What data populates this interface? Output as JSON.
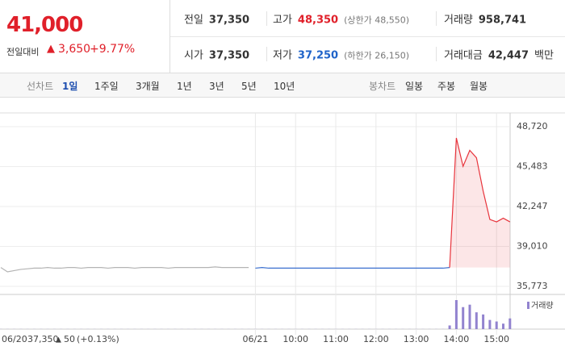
{
  "quote": {
    "price": "41,000",
    "change_label": "전일대비",
    "change": "3,650",
    "rate": "+9.77%",
    "stats": [
      {
        "label": "전일",
        "value": "37,350"
      },
      {
        "label": "고가",
        "value": "48,350",
        "note": "(상한가 48,550)",
        "color": "#e0202a"
      },
      {
        "label": "거래량",
        "value": "958,741"
      },
      {
        "label": "시가",
        "value": "37,350"
      },
      {
        "label": "저가",
        "value": "37,250",
        "note": "(하한가 26,150)",
        "color": "#1f63c9"
      },
      {
        "label": "거래대금",
        "value": "42,447",
        "unit": "백만"
      }
    ]
  },
  "tabs": {
    "line_label": "선차트",
    "line_periods": [
      "1일",
      "1주일",
      "3개월",
      "1년",
      "3년",
      "5년",
      "10년"
    ],
    "candle_label": "봉차트",
    "candle_periods": [
      "일봉",
      "주봉",
      "월봉"
    ]
  },
  "chart_data": {
    "type": "line",
    "categories": [
      "06/20",
      null,
      null,
      null,
      null,
      null,
      null,
      null,
      null,
      null,
      null,
      null,
      null,
      null,
      null,
      null,
      null,
      null,
      null,
      null,
      null,
      null,
      null,
      null,
      null,
      null,
      null,
      null,
      null,
      null,
      null,
      null,
      null,
      null,
      null,
      null,
      null,
      null,
      "06/21",
      null,
      null,
      null,
      null,
      null,
      "10:00",
      null,
      null,
      null,
      null,
      null,
      "11:00",
      null,
      null,
      null,
      null,
      null,
      "12:00",
      null,
      null,
      null,
      null,
      null,
      "13:00",
      null,
      null,
      null,
      null,
      null,
      "14:00",
      null,
      null,
      null,
      null,
      null,
      "15:00",
      null,
      null
    ],
    "series": [
      {
        "color": "#b4b4b4",
        "values": [
          37300,
          36950,
          37050,
          37150,
          37200,
          37250,
          37250,
          37300,
          37250,
          37250,
          37300,
          37300,
          37250,
          37300,
          37300,
          37300,
          37250,
          37300,
          37300,
          37300,
          37250,
          37300,
          37300,
          37300,
          37300,
          37250,
          37300,
          37300,
          37300,
          37300,
          37300,
          37300,
          37350,
          37300,
          37300,
          37300,
          37300,
          37300,
          null,
          null,
          null,
          null,
          null,
          null,
          null,
          null,
          null,
          null,
          null,
          null,
          null,
          null,
          null,
          null,
          null,
          null,
          null,
          null,
          null,
          null,
          null,
          null,
          null,
          null,
          null,
          null,
          null,
          null,
          null,
          null,
          null,
          null,
          null,
          null,
          null,
          null,
          null
        ]
      },
      {
        "color": "#3a6fcf",
        "values": [
          null,
          null,
          null,
          null,
          null,
          null,
          null,
          null,
          null,
          null,
          null,
          null,
          null,
          null,
          null,
          null,
          null,
          null,
          null,
          null,
          null,
          null,
          null,
          null,
          null,
          null,
          null,
          null,
          null,
          null,
          null,
          null,
          null,
          null,
          null,
          null,
          null,
          null,
          37250,
          37300,
          37250,
          37250,
          37250,
          37250,
          37250,
          37250,
          37250,
          37250,
          37250,
          37250,
          37250,
          37250,
          37250,
          37250,
          37250,
          37250,
          37250,
          37250,
          37250,
          37250,
          37250,
          37250,
          37250,
          37250,
          37250,
          37250,
          37250,
          37300,
          null,
          null,
          null,
          null,
          null,
          null,
          null,
          null,
          null
        ]
      },
      {
        "color": "#e8343c",
        "area": true,
        "values": [
          null,
          null,
          null,
          null,
          null,
          null,
          null,
          null,
          null,
          null,
          null,
          null,
          null,
          null,
          null,
          null,
          null,
          null,
          null,
          null,
          null,
          null,
          null,
          null,
          null,
          null,
          null,
          null,
          null,
          null,
          null,
          null,
          null,
          null,
          null,
          null,
          null,
          null,
          null,
          null,
          null,
          null,
          null,
          null,
          null,
          null,
          null,
          null,
          null,
          null,
          null,
          null,
          null,
          null,
          null,
          null,
          null,
          null,
          null,
          null,
          null,
          null,
          null,
          null,
          null,
          null,
          null,
          37300,
          47800,
          45500,
          46800,
          46200,
          43500,
          41200,
          41000,
          41300,
          41000
        ]
      }
    ],
    "volume": {
      "name": "거래량",
      "color": "#9283cf",
      "values": [
        300,
        300,
        300,
        300,
        300,
        300,
        300,
        300,
        300,
        300,
        300,
        300,
        300,
        300,
        300,
        300,
        300,
        300,
        300,
        300,
        300,
        300,
        300,
        300,
        300,
        300,
        300,
        300,
        300,
        300,
        300,
        300,
        300,
        300,
        300,
        300,
        300,
        300,
        300,
        300,
        300,
        300,
        300,
        300,
        300,
        300,
        300,
        300,
        300,
        300,
        300,
        300,
        300,
        300,
        300,
        300,
        300,
        300,
        300,
        300,
        300,
        300,
        300,
        300,
        300,
        300,
        300,
        12000,
        95000,
        72000,
        80000,
        55000,
        48000,
        30000,
        25000,
        18000,
        35000
      ]
    },
    "ylim": [
      35773,
      48720
    ],
    "yticks": [
      {
        "value": 48720,
        "label": "48,720"
      },
      {
        "value": 45483,
        "label": "45,483"
      },
      {
        "value": 42247,
        "label": "42,247"
      },
      {
        "value": 39010,
        "label": "39,010"
      },
      {
        "value": 35773,
        "label": "35,773"
      }
    ],
    "grid": true
  },
  "prev_day_summary": {
    "price": "37,350",
    "change": "50",
    "rate": "(+0.13%)"
  }
}
